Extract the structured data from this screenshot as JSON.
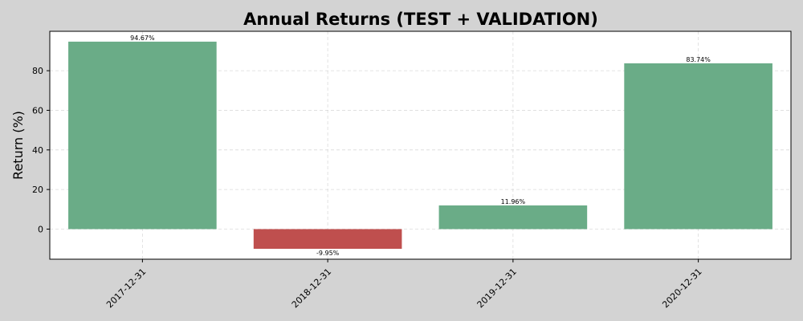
{
  "chart_data": {
    "type": "bar",
    "title": "Annual Returns (TEST + VALIDATION)",
    "xlabel": "",
    "ylabel": "Return (%)",
    "categories": [
      "2017-12-31",
      "2018-12-31",
      "2019-12-31",
      "2020-12-31"
    ],
    "values": [
      94.67,
      -9.95,
      11.96,
      83.74
    ],
    "data_labels": [
      "94.67%",
      "-9.95%",
      "11.96%",
      "83.74%"
    ],
    "ylim": [
      -15.2,
      99.9
    ],
    "yticks": [
      0,
      20,
      40,
      60,
      80
    ],
    "grid": true,
    "colors": {
      "positive": "#6aac87",
      "negative": "#bf4f4e",
      "background": "#d3d3d3",
      "plot_background": "#ffffff"
    }
  }
}
